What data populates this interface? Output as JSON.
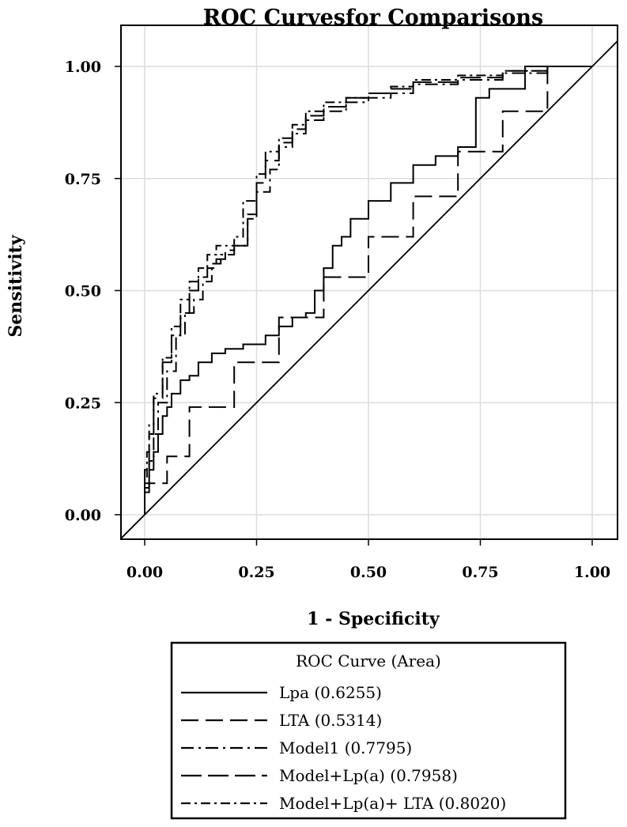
{
  "chart_data": {
    "type": "line",
    "title": "ROC Curvesfor Comparisons",
    "xlabel": "1 - Specificity",
    "ylabel": "Sensitivity",
    "xlim": [
      0,
      1
    ],
    "ylim": [
      0,
      1
    ],
    "x_ticks": [
      "0.00",
      "0.25",
      "0.50",
      "0.75",
      "1.00"
    ],
    "y_ticks": [
      "0.00",
      "0.25",
      "0.50",
      "0.75",
      "1.00"
    ],
    "grid": true,
    "legend": {
      "title": "ROC Curve (Area)",
      "placement": "bottom"
    },
    "reference_line": {
      "x": [
        0,
        1
      ],
      "y": [
        0,
        1
      ]
    },
    "series": [
      {
        "name": "Lpa",
        "area": "(0.6255)",
        "dash": "solid",
        "x": [
          0,
          0.01,
          0.02,
          0.03,
          0.04,
          0.05,
          0.06,
          0.08,
          0.1,
          0.12,
          0.15,
          0.18,
          0.22,
          0.27,
          0.3,
          0.33,
          0.36,
          0.38,
          0.4,
          0.42,
          0.44,
          0.46,
          0.5,
          0.55,
          0.6,
          0.65,
          0.7,
          0.74,
          0.77,
          0.85,
          1.0
        ],
        "y": [
          0,
          0.05,
          0.1,
          0.14,
          0.18,
          0.22,
          0.24,
          0.27,
          0.3,
          0.31,
          0.34,
          0.36,
          0.37,
          0.38,
          0.4,
          0.42,
          0.44,
          0.45,
          0.5,
          0.55,
          0.6,
          0.62,
          0.66,
          0.7,
          0.74,
          0.78,
          0.8,
          0.82,
          0.93,
          0.95,
          1.0
        ]
      },
      {
        "name": "LTA",
        "area": "(0.5314)",
        "dash": "long-dash",
        "x": [
          0,
          0.05,
          0.1,
          0.2,
          0.3,
          0.4,
          0.5,
          0.6,
          0.7,
          0.8,
          0.9,
          1.0
        ],
        "y": [
          0,
          0.07,
          0.13,
          0.24,
          0.34,
          0.44,
          0.53,
          0.62,
          0.71,
          0.81,
          0.9,
          1.0
        ]
      },
      {
        "name": "Model1",
        "area": "(0.7795)",
        "dash": "dash-dot",
        "x": [
          0,
          0.01,
          0.02,
          0.03,
          0.05,
          0.07,
          0.09,
          0.11,
          0.13,
          0.15,
          0.17,
          0.2,
          0.23,
          0.25,
          0.28,
          0.3,
          0.33,
          0.36,
          0.4,
          0.45,
          0.5,
          0.55,
          0.6,
          0.7,
          0.8,
          0.9,
          1.0
        ],
        "y": [
          0,
          0.06,
          0.12,
          0.18,
          0.25,
          0.32,
          0.4,
          0.45,
          0.48,
          0.52,
          0.56,
          0.58,
          0.6,
          0.66,
          0.72,
          0.77,
          0.82,
          0.85,
          0.88,
          0.9,
          0.92,
          0.93,
          0.94,
          0.96,
          0.97,
          0.985,
          1.0
        ]
      },
      {
        "name": "Model+Lp(a)",
        "area": "(0.7958)",
        "dash": "long-dash-2",
        "x": [
          0,
          0.01,
          0.02,
          0.04,
          0.06,
          0.08,
          0.1,
          0.12,
          0.14,
          0.16,
          0.18,
          0.2,
          0.23,
          0.25,
          0.27,
          0.3,
          0.33,
          0.36,
          0.4,
          0.45,
          0.5,
          0.55,
          0.6,
          0.7,
          0.8,
          0.9,
          1.0
        ],
        "y": [
          0,
          0.1,
          0.18,
          0.26,
          0.34,
          0.4,
          0.45,
          0.5,
          0.53,
          0.55,
          0.57,
          0.59,
          0.6,
          0.67,
          0.74,
          0.79,
          0.83,
          0.86,
          0.89,
          0.91,
          0.93,
          0.94,
          0.95,
          0.965,
          0.975,
          0.99,
          1.0
        ]
      },
      {
        "name": "Model+Lp(a)+ LTA",
        "area": "(0.8020)",
        "dash": "dash-dot-2",
        "x": [
          0,
          0.005,
          0.01,
          0.02,
          0.04,
          0.06,
          0.08,
          0.1,
          0.12,
          0.14,
          0.16,
          0.18,
          0.2,
          0.22,
          0.25,
          0.27,
          0.3,
          0.33,
          0.36,
          0.4,
          0.45,
          0.5,
          0.55,
          0.6,
          0.7,
          0.8,
          0.9,
          1.0
        ],
        "y": [
          0,
          0.08,
          0.14,
          0.2,
          0.27,
          0.35,
          0.42,
          0.48,
          0.52,
          0.55,
          0.58,
          0.6,
          0.6,
          0.62,
          0.7,
          0.76,
          0.81,
          0.84,
          0.87,
          0.9,
          0.92,
          0.93,
          0.94,
          0.955,
          0.97,
          0.98,
          0.99,
          1.0
        ]
      }
    ]
  }
}
